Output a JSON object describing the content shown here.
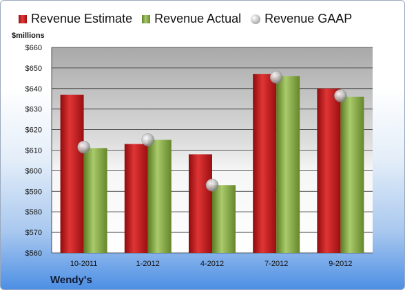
{
  "company": "Wendy's",
  "unit_label": "$millions",
  "legend": {
    "estimate": "Revenue Estimate",
    "actual": "Revenue Actual",
    "gaap": "Revenue GAAP"
  },
  "colors": {
    "estimate": "#cc1f1f",
    "actual": "#8aab4a",
    "gaap": "#bdbdbd"
  },
  "chart_data": {
    "type": "bar",
    "categories": [
      "10-2011",
      "1-2012",
      "4-2012",
      "7-2012",
      "9-2012"
    ],
    "series": [
      {
        "name": "Revenue Estimate",
        "values": [
          637,
          613,
          608,
          647,
          640
        ]
      },
      {
        "name": "Revenue Actual",
        "values": [
          611,
          615,
          593,
          646,
          636
        ]
      },
      {
        "name": "Revenue GAAP",
        "values": [
          611.5,
          615,
          593,
          645.5,
          636.5
        ]
      }
    ],
    "ylabel": "$millions",
    "ylim": [
      560,
      660
    ],
    "yticks": [
      "$560",
      "$570",
      "$580",
      "$590",
      "$600",
      "$610",
      "$620",
      "$630",
      "$640",
      "$650",
      "$660"
    ],
    "grid": true,
    "legend_position": "top"
  }
}
